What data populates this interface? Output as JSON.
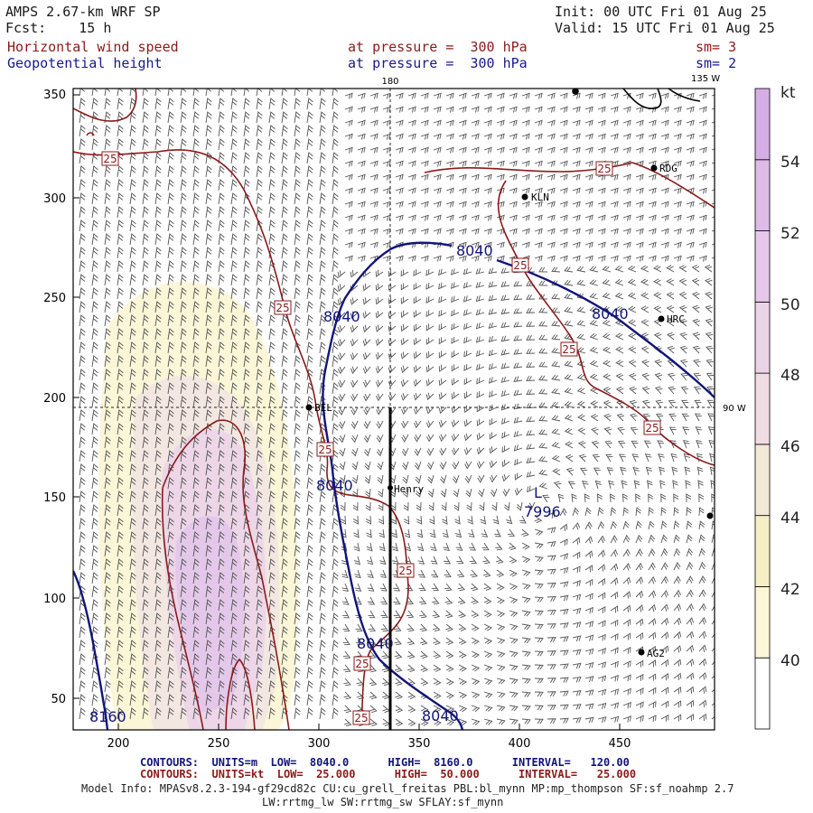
{
  "header": {
    "model": "AMPS 2.67-km WRF SP",
    "init": "Init: 00 UTC Fri 01 Aug 25",
    "fcst": "Fcst:    15 h",
    "valid": "Valid: 15 UTC Fri 01 Aug 25",
    "field1": "Horizontal wind speed",
    "field1_level": "at pressure =  300 hPa",
    "field1_sm": "sm= 3",
    "field2": "Geopotential height",
    "field2_level": "at pressure =  300 hPa",
    "field2_sm": "sm= 2"
  },
  "map": {
    "meridian_180": "180",
    "meridian_135w": "135 W",
    "meridian_90w": "90 W",
    "y_ticks": [
      "350",
      "300",
      "250",
      "200",
      "150",
      "100",
      "50"
    ],
    "x_ticks": [
      "200",
      "250",
      "300",
      "350",
      "400",
      "450"
    ],
    "stations": [
      "RDG",
      "KLN",
      "HRC",
      "Henry",
      "AG2",
      "BEL"
    ],
    "low_label": "L",
    "low_value": "7996",
    "height_labels": [
      "8040",
      "8040",
      "8040",
      "8040",
      "8040",
      "8040",
      "8160"
    ],
    "speed_labels": [
      "25",
      "25",
      "25",
      "25",
      "25",
      "25",
      "25",
      "25",
      "25",
      "25",
      "25"
    ],
    "colors": {
      "speed_contour": "#8b1a1a",
      "height_contour": "#12157a",
      "shade_light": "#fbf7d6",
      "shade_mid": "#f3e6e6",
      "shade_dark": "#e6cdea"
    }
  },
  "colorbar": {
    "unit": "kt",
    "labels": [
      "54",
      "52",
      "50",
      "48",
      "46",
      "44",
      "42",
      "40"
    ],
    "colors": [
      "#ffffff",
      "#fbf7d8",
      "#f6efc6",
      "#f1e9d6",
      "#efdde3",
      "#ebd3e6",
      "#e6c8ea",
      "#dfbbe8",
      "#d6aee6"
    ]
  },
  "footer": {
    "contours1": "CONTOURS:  UNITS=m  LOW=  8040.0      HIGH=  8160.0      INTERVAL=   120.00",
    "contours2": "CONTOURS:  UNITS=kt  LOW=  25.000      HIGH=  50.000      INTERVAL=   25.000",
    "model_info": "Model Info: MPASv8.2.3-194-gf29cd82c CU:cu_grell_freitas PBL:bl_mynn MP:mp_thompson SF:sf_noahmp 2.7",
    "model_info2": "LW:rrtmg_lw SW:rrtmg_sw SFLAY:sf_mynn"
  }
}
